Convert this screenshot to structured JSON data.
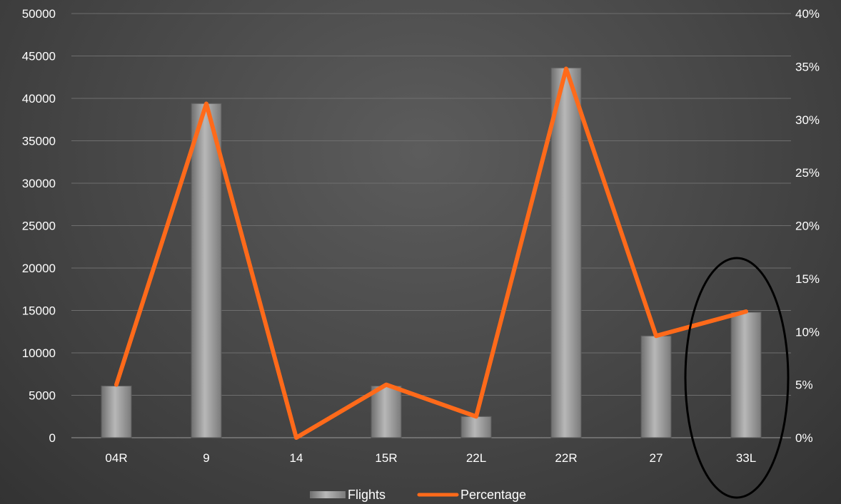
{
  "colors": {
    "bar_light": "#b8b8b8",
    "bar_dark": "#7a7a7a",
    "line": "#ff6a1a",
    "grid": "#6e6e6e",
    "ellipse": "#000000",
    "text": "#ffffff"
  },
  "chart_data": {
    "type": "bar",
    "categories": [
      "04R",
      "9",
      "14",
      "15R",
      "22L",
      "22R",
      "27",
      "33L"
    ],
    "series": [
      {
        "name": "Flights",
        "type": "bar",
        "axis": "left",
        "values": [
          6100,
          39400,
          0,
          6100,
          2500,
          43600,
          12000,
          14800
        ]
      },
      {
        "name": "Percentage",
        "type": "line",
        "axis": "right",
        "values": [
          0.05,
          0.315,
          0.0,
          0.05,
          0.02,
          0.348,
          0.096,
          0.119
        ]
      }
    ],
    "y_left": {
      "min": 0,
      "max": 50000,
      "ticks": [
        "0",
        "5000",
        "10000",
        "15000",
        "20000",
        "25000",
        "30000",
        "35000",
        "40000",
        "45000",
        "50000"
      ]
    },
    "y_right": {
      "min": 0,
      "max": 0.4,
      "ticks": [
        "0%",
        "5%",
        "10%",
        "15%",
        "20%",
        "25%",
        "30%",
        "35%",
        "40%"
      ]
    },
    "grid": true,
    "legend_position": "bottom",
    "highlight": {
      "category": "33L",
      "shape": "ellipse"
    }
  }
}
